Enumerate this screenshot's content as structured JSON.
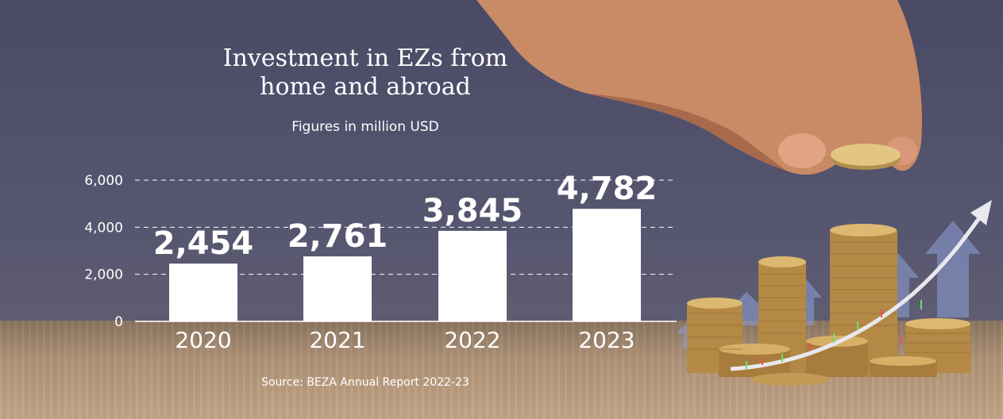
{
  "chart_data": {
    "type": "bar",
    "title": "Investment in EZs from home and abroad",
    "subtitle": "Figures in million USD",
    "source": "Source: BEZA Annual Report 2022-23",
    "categories": [
      "2020",
      "2021",
      "2022",
      "2023"
    ],
    "values": [
      2454,
      2761,
      3845,
      4782
    ],
    "data_labels": [
      "2,454",
      "2,761",
      "3,845",
      "4,782"
    ],
    "yticks": [
      0,
      2000,
      4000,
      6000
    ],
    "ytick_labels": [
      "0",
      "2,000",
      "4,000",
      "6,000"
    ],
    "ylim": [
      0,
      6000
    ],
    "grid": "dashed horizontal",
    "colors": {
      "bar": "#ffffff",
      "background": "#4d4d66",
      "text": "#ffffff"
    }
  }
}
